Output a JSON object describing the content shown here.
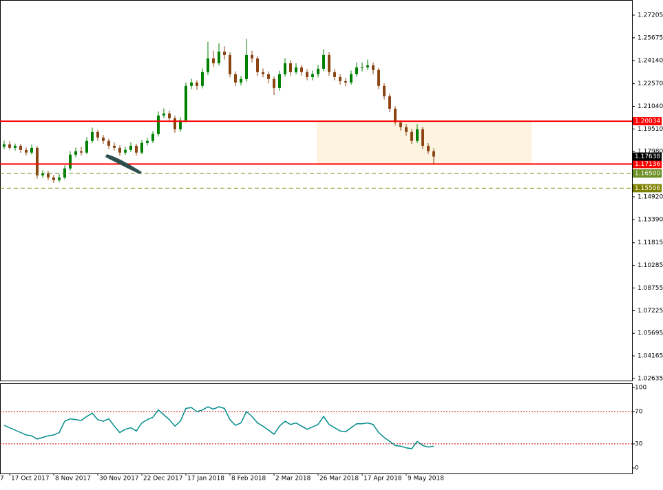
{
  "chart_data": [
    {
      "type": "candlestick",
      "xlim": [
        -0.75,
        114
      ],
      "ylim": [
        1.02495,
        1.28228
      ],
      "yticks": [
        1.27205,
        1.25675,
        {
          "value": 1.2414,
          "label": "1.24140"
        },
        {
          "value": 1.2257,
          "label": "1.22570"
        },
        {
          "value": 1.2104,
          "label": "1.21040"
        },
        {
          "value": 1.1951,
          "label": "1.19510"
        },
        {
          "value": 1.1798,
          "label": "1.17980"
        },
        {
          "value": 1.1492,
          "label": "1.14920"
        },
        {
          "value": 1.1339,
          "label": "1.13390"
        },
        1.11815,
        1.10285,
        1.08755,
        1.07225,
        1.05695,
        1.04165,
        1.02635
      ],
      "up_color": "#008000",
      "down_color": "#8b4513",
      "candles": [
        [
          1.183,
          1.1872,
          1.1815,
          1.1847
        ],
        [
          1.1847,
          1.1868,
          1.181,
          1.1823
        ],
        [
          1.1823,
          1.1852,
          1.1805,
          1.1837
        ],
        [
          1.1837,
          1.185,
          1.179,
          1.1809
        ],
        [
          1.1809,
          1.1826,
          1.1772,
          1.1791
        ],
        [
          1.1791,
          1.1845,
          1.1778,
          1.1823
        ],
        [
          1.1823,
          1.1835,
          1.1615,
          1.1637
        ],
        [
          1.1637,
          1.1672,
          1.162,
          1.1651
        ],
        [
          1.1651,
          1.1668,
          1.1605,
          1.1623
        ],
        [
          1.1623,
          1.164,
          1.1585,
          1.1605
        ],
        [
          1.1605,
          1.1645,
          1.159,
          1.1623
        ],
        [
          1.1623,
          1.1705,
          1.161,
          1.1684
        ],
        [
          1.1684,
          1.18,
          1.167,
          1.1777
        ],
        [
          1.1777,
          1.1825,
          1.176,
          1.18
        ],
        [
          1.18,
          1.183,
          1.1772,
          1.1791
        ],
        [
          1.1791,
          1.1895,
          1.178,
          1.187
        ],
        [
          1.187,
          1.196,
          1.1855,
          1.193
        ],
        [
          1.193,
          1.1945,
          1.187,
          1.1893
        ],
        [
          1.1893,
          1.191,
          1.185,
          1.187
        ],
        [
          1.187,
          1.1885,
          1.1815,
          1.1837
        ],
        [
          1.1837,
          1.186,
          1.1805,
          1.1823
        ],
        [
          1.1823,
          1.184,
          1.177,
          1.1791
        ],
        [
          1.1791,
          1.183,
          1.1775,
          1.1809
        ],
        [
          1.1809,
          1.186,
          1.1795,
          1.1837
        ],
        [
          1.1837,
          1.185,
          1.177,
          1.1791
        ],
        [
          1.1791,
          1.1875,
          1.178,
          1.1856
        ],
        [
          1.1856,
          1.189,
          1.184,
          1.187
        ],
        [
          1.187,
          1.1935,
          1.1855,
          1.1916
        ],
        [
          1.1916,
          1.207,
          1.19,
          1.2042
        ],
        [
          1.2042,
          1.209,
          1.2025,
          1.2056
        ],
        [
          1.2056,
          1.2075,
          1.2,
          1.2023
        ],
        [
          1.2023,
          1.204,
          1.1925,
          1.1949
        ],
        [
          1.1949,
          1.203,
          1.193,
          1.2009
        ],
        [
          1.2009,
          1.2265,
          1.1995,
          1.2242
        ],
        [
          1.2242,
          1.229,
          1.222,
          1.2265
        ],
        [
          1.2265,
          1.228,
          1.2215,
          1.2242
        ],
        [
          1.2242,
          1.236,
          1.2225,
          1.2335
        ],
        [
          1.2335,
          1.254,
          1.2315,
          1.2428
        ],
        [
          1.2428,
          1.248,
          1.237,
          1.2395
        ],
        [
          1.2395,
          1.253,
          1.238,
          1.2474
        ],
        [
          1.2474,
          1.251,
          1.242,
          1.2451
        ],
        [
          1.2451,
          1.247,
          1.23,
          1.2321
        ],
        [
          1.2321,
          1.234,
          1.224,
          1.2265
        ],
        [
          1.2265,
          1.231,
          1.2245,
          1.2288
        ],
        [
          1.2288,
          1.256,
          1.227,
          1.2451
        ],
        [
          1.2451,
          1.248,
          1.24,
          1.2428
        ],
        [
          1.2428,
          1.2445,
          1.231,
          1.2335
        ],
        [
          1.2335,
          1.236,
          1.23,
          1.2321
        ],
        [
          1.2321,
          1.234,
          1.226,
          1.2288
        ],
        [
          1.2288,
          1.2305,
          1.218,
          1.2228
        ],
        [
          1.2228,
          1.2345,
          1.221,
          1.2321
        ],
        [
          1.2321,
          1.243,
          1.2305,
          1.2395
        ],
        [
          1.2395,
          1.2415,
          1.231,
          1.2335
        ],
        [
          1.2335,
          1.2395,
          1.232,
          1.2367
        ],
        [
          1.2367,
          1.2385,
          1.231,
          1.2335
        ],
        [
          1.2335,
          1.2355,
          1.228,
          1.2302
        ],
        [
          1.2302,
          1.2345,
          1.228,
          1.2321
        ],
        [
          1.2321,
          1.2385,
          1.23,
          1.2358
        ],
        [
          1.2358,
          1.249,
          1.234,
          1.2451
        ],
        [
          1.2451,
          1.247,
          1.231,
          1.2335
        ],
        [
          1.2335,
          1.2355,
          1.228,
          1.2302
        ],
        [
          1.2302,
          1.232,
          1.225,
          1.2274
        ],
        [
          1.2274,
          1.2295,
          1.224,
          1.2265
        ],
        [
          1.2265,
          1.2345,
          1.225,
          1.2321
        ],
        [
          1.2321,
          1.24,
          1.2305,
          1.2367
        ],
        [
          1.2367,
          1.24,
          1.234,
          1.2367
        ],
        [
          1.2367,
          1.242,
          1.235,
          1.2381
        ],
        [
          1.2381,
          1.24,
          1.232,
          1.2349
        ],
        [
          1.2349,
          1.2365,
          1.222,
          1.2242
        ],
        [
          1.2242,
          1.226,
          1.215,
          1.2172
        ],
        [
          1.2172,
          1.219,
          1.2065,
          1.2088
        ],
        [
          1.2088,
          1.2105,
          1.1975,
          1.1995
        ],
        [
          1.1995,
          1.201,
          1.194,
          1.1963
        ],
        [
          1.1963,
          1.1985,
          1.1905,
          1.193
        ],
        [
          1.193,
          1.195,
          1.185,
          1.187
        ],
        [
          1.187,
          1.1985,
          1.1855,
          1.1949
        ],
        [
          1.1949,
          1.1965,
          1.1815,
          1.1837
        ],
        [
          1.1837,
          1.1855,
          1.178,
          1.18
        ],
        [
          1.18,
          1.182,
          1.1715,
          1.1764
        ]
      ],
      "last_price": {
        "value": 1.17638,
        "color": "#000000"
      },
      "hlines": [
        {
          "value": 1.20034,
          "color": "#ff0000",
          "dashed": false
        },
        {
          "value": 1.17136,
          "color": "#ff0000",
          "dashed": false
        },
        {
          "value": 1.165,
          "label": "1.16500",
          "color": "#6b8e23",
          "dashed": true
        },
        {
          "value": 1.15506,
          "color": "#808000",
          "dashed": true
        }
      ]
    },
    {
      "type": "line",
      "xlim": [
        -0.75,
        114
      ],
      "ylim": [
        -6.8,
        105.1
      ],
      "yticks": [
        100,
        70,
        30,
        0
      ],
      "levels": [
        70,
        30
      ],
      "level_color": "#cc0000",
      "color": "#008b8b",
      "values": [
        53,
        50,
        47,
        44,
        41,
        40,
        36,
        38,
        40,
        41,
        44,
        58,
        61,
        60,
        59,
        64,
        68,
        60,
        58,
        61,
        52,
        44,
        48,
        50,
        46,
        56,
        60,
        63,
        72,
        66,
        60,
        52,
        58,
        74,
        75,
        70,
        72,
        76,
        73,
        76,
        74,
        60,
        53,
        56,
        70,
        64,
        56,
        52,
        47,
        42,
        52,
        58,
        54,
        56,
        52,
        48,
        51,
        54,
        64,
        54,
        50,
        46,
        45,
        50,
        55,
        55,
        56,
        54,
        44,
        38,
        33,
        28,
        27,
        25,
        24,
        33,
        28,
        26,
        27
      ],
      "xticks": [
        {
          "value": -1,
          "label": "7"
        },
        {
          "value": 1,
          "label": "17 Oct 2017"
        },
        {
          "value": 9,
          "label": "8 Nov 2017"
        },
        {
          "value": 17,
          "label": "30 Nov 2017"
        },
        {
          "value": 25,
          "label": "22 Dec 2017"
        },
        {
          "value": 33,
          "label": "17 Jan 2018"
        },
        {
          "value": 41,
          "label": "8 Feb 2018"
        },
        {
          "value": 49,
          "label": "2 Mar 2018"
        },
        {
          "value": 57,
          "label": "26 Mar 2018"
        },
        {
          "value": 65,
          "label": "17 Apr 2018"
        },
        {
          "value": 73,
          "label": "9 May 2018"
        }
      ]
    }
  ]
}
